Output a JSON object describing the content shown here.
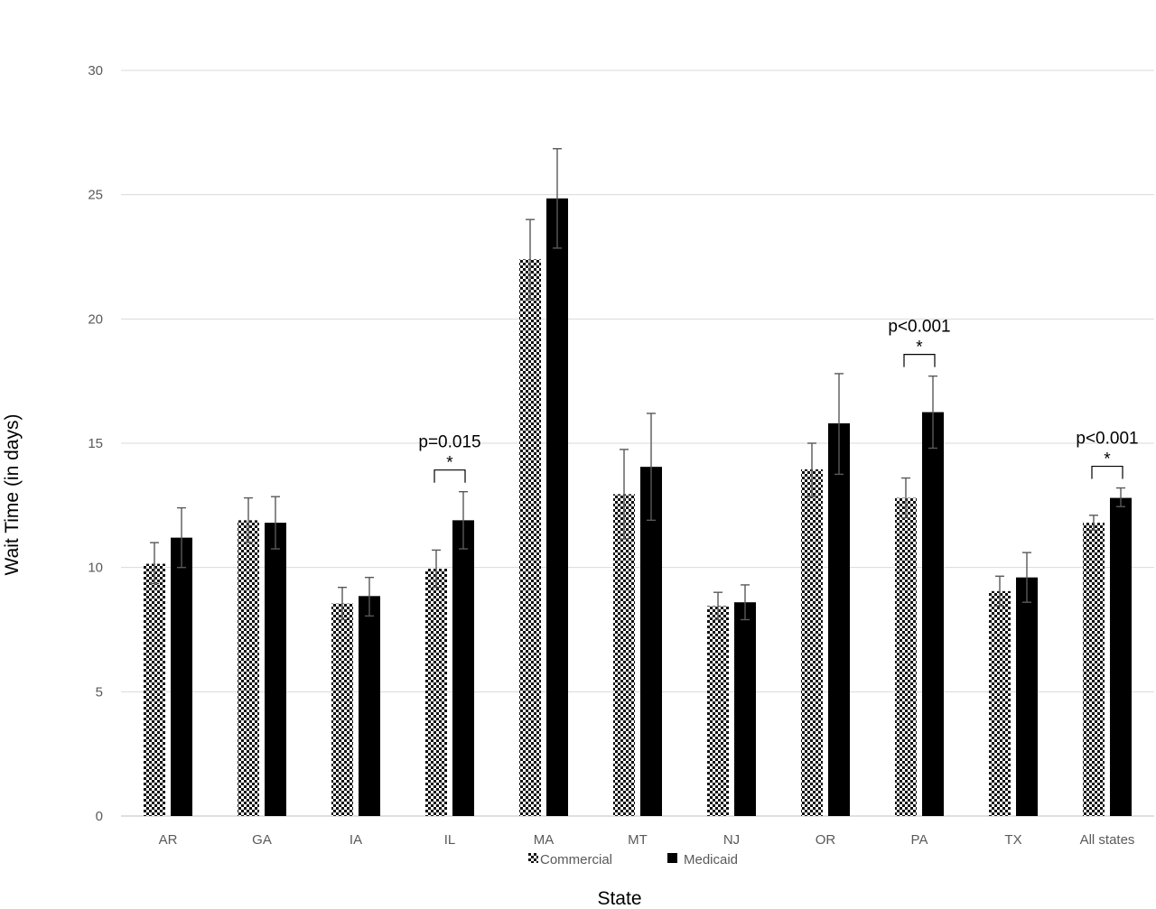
{
  "chart_data": {
    "type": "bar",
    "xlabel": "State",
    "ylabel": "Wait Time (in days)",
    "ylim": [
      0,
      30
    ],
    "yticks": [
      "0",
      "5",
      "10",
      "15",
      "20",
      "25",
      "30"
    ],
    "grid": true,
    "legend_position": "bottom",
    "categories": [
      "AR",
      "GA",
      "IA",
      "IL",
      "MA",
      "MT",
      "NJ",
      "OR",
      "PA",
      "TX",
      "All states"
    ],
    "series": [
      {
        "name": "Commercial",
        "pattern": "checkered",
        "color": "#000000",
        "values": [
          10.15,
          11.9,
          8.55,
          9.95,
          22.4,
          12.95,
          8.45,
          13.95,
          12.8,
          9.05,
          11.8
        ],
        "error_low": [
          9.35,
          11.0,
          7.9,
          9.2,
          20.8,
          11.15,
          7.9,
          12.85,
          12.0,
          8.45,
          11.5
        ],
        "error_high": [
          11.0,
          12.8,
          9.2,
          10.7,
          24.0,
          14.75,
          9.0,
          15.0,
          13.6,
          9.65,
          12.1
        ]
      },
      {
        "name": "Medicaid",
        "pattern": "solid",
        "color": "#000000",
        "values": [
          11.2,
          11.8,
          8.85,
          11.9,
          24.85,
          14.05,
          8.6,
          15.8,
          16.25,
          9.6,
          12.8
        ],
        "error_low": [
          10.0,
          10.75,
          8.05,
          10.75,
          22.85,
          11.9,
          7.9,
          13.75,
          14.8,
          8.6,
          12.45
        ],
        "error_high": [
          12.4,
          12.85,
          9.6,
          13.05,
          26.85,
          16.2,
          9.3,
          17.8,
          17.7,
          10.6,
          13.2
        ]
      }
    ],
    "annotations": [
      {
        "category": "IL",
        "label": "p=0.015",
        "star": "*"
      },
      {
        "category": "PA",
        "label": "p<0.001",
        "star": "*"
      },
      {
        "category": "All states",
        "label": "p<0.001",
        "star": "*"
      }
    ]
  }
}
